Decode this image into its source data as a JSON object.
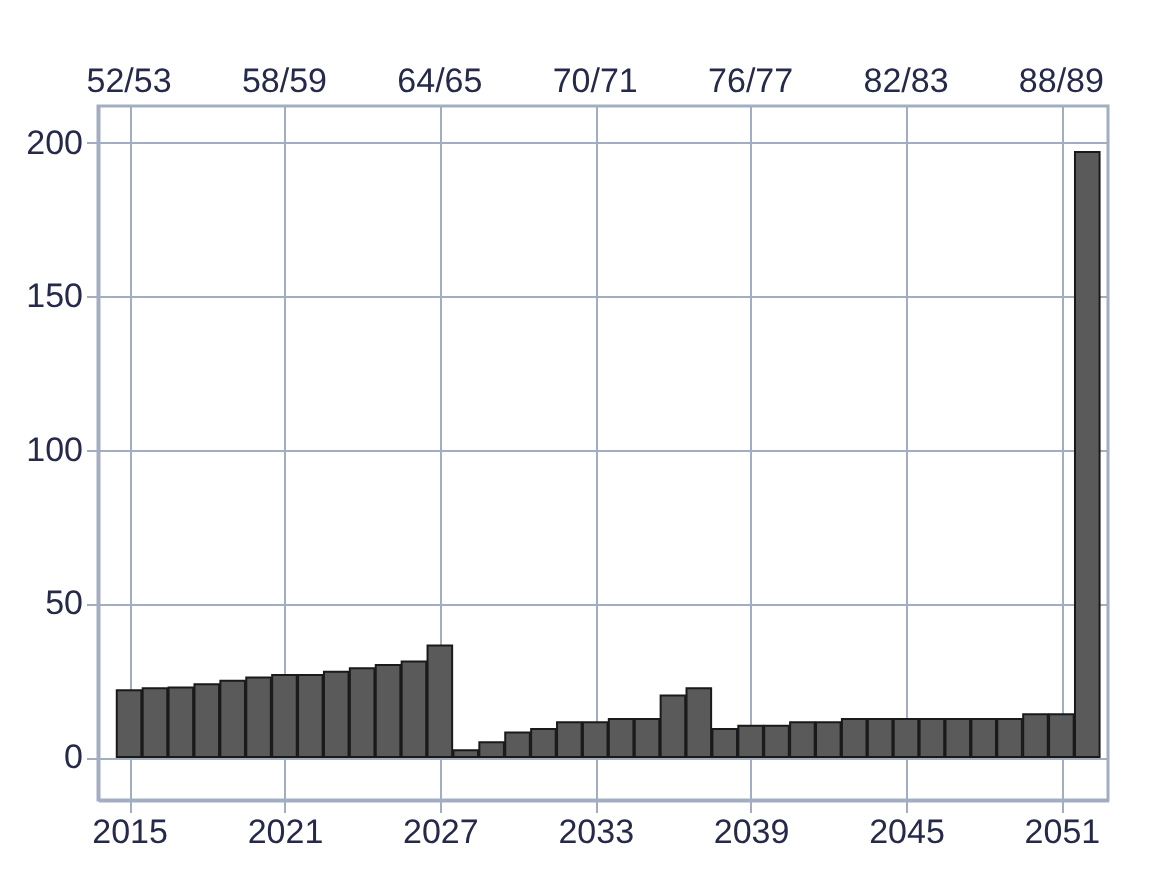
{
  "chart_data": {
    "type": "bar",
    "x": [
      2015,
      2016,
      2017,
      2018,
      2019,
      2020,
      2021,
      2022,
      2023,
      2024,
      2025,
      2026,
      2027,
      2028,
      2029,
      2030,
      2031,
      2032,
      2033,
      2034,
      2035,
      2036,
      2037,
      2038,
      2039,
      2040,
      2041,
      2042,
      2043,
      2044,
      2045,
      2046,
      2047,
      2048,
      2049,
      2050,
      2051,
      2052
    ],
    "values": [
      21.7,
      22.4,
      22.6,
      23.7,
      24.8,
      25.9,
      26.7,
      26.7,
      27.8,
      28.9,
      30,
      31.1,
      36.3,
      2.2,
      4.8,
      8,
      9.1,
      11.3,
      11.3,
      12.4,
      12.4,
      20,
      22.4,
      9.1,
      10.2,
      10.2,
      11.3,
      11.3,
      12.4,
      12.4,
      12.4,
      12.4,
      12.4,
      12.4,
      12.4,
      13.9,
      13.9,
      197
    ],
    "color": "#5a5a5a",
    "xlim": [
      2013.8,
      2052.8
    ],
    "xticks": [
      2015,
      2021,
      2027,
      2033,
      2039,
      2045,
      2051
    ],
    "annotations": [
      "52/53",
      "58/59",
      "64/65",
      "70/71",
      "76/77",
      "82/83",
      "88/89"
    ],
    "ylim": [
      -14,
      212
    ],
    "yticks": [
      0,
      50,
      100,
      150,
      200
    ],
    "grid": true
  }
}
